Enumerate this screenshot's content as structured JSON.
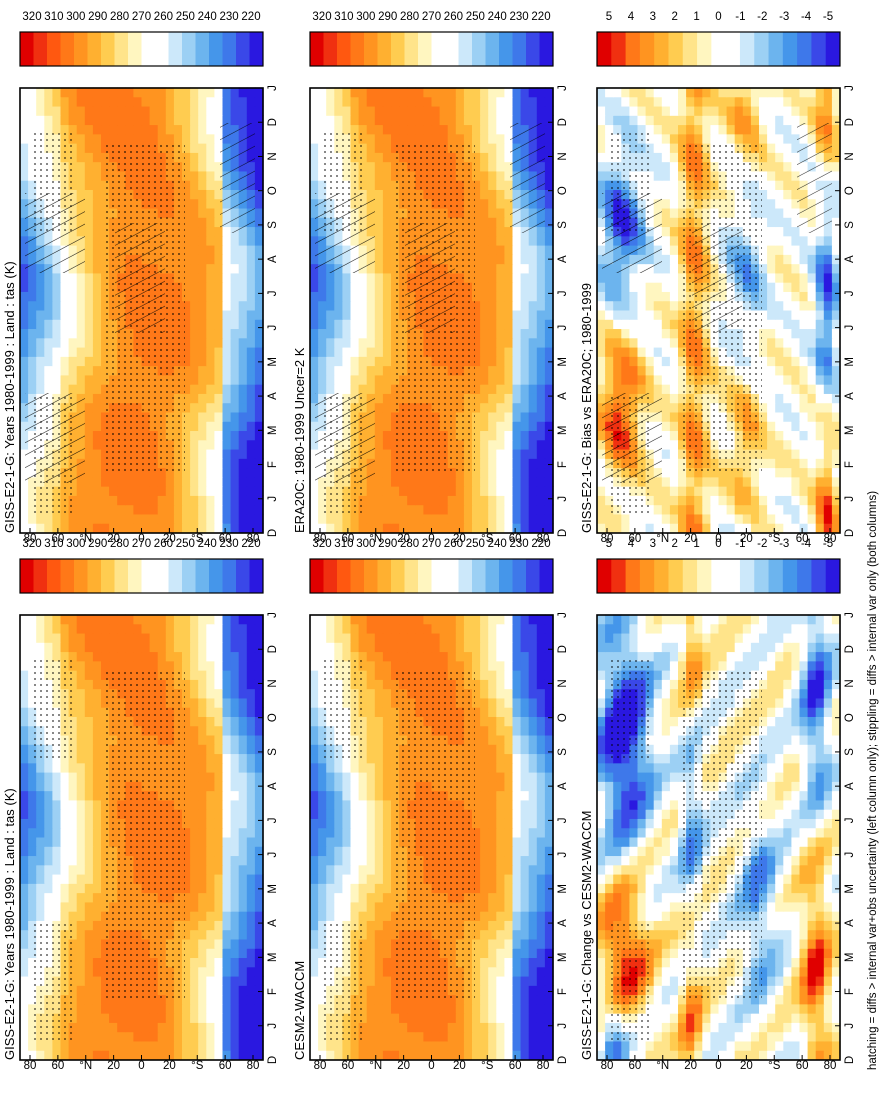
{
  "figure": {
    "footnote": "hatching = diffs > internal var+obs uncertainty (left column only); stippling = diffs > internal var only (both columns)"
  },
  "colors": {
    "abs_scale": [
      "#2a18e0",
      "#3a48e8",
      "#3e78ea",
      "#4596ea",
      "#6cb4ee",
      "#9cd0f4",
      "#cce8fa",
      "#ffffff",
      "#ffffff",
      "#fff6c0",
      "#ffe48a",
      "#ffcc50",
      "#ffb030",
      "#ff9420",
      "#ff7818",
      "#ff5810",
      "#f03010",
      "#e00000"
    ],
    "anom_scale": [
      "#2a18e0",
      "#3a48e8",
      "#3e78ea",
      "#4596ea",
      "#6cb4ee",
      "#9cd0f4",
      "#cce8fa",
      "#ffffff",
      "#ffffff",
      "#fff6c0",
      "#ffe48a",
      "#ffcc50",
      "#ffb030",
      "#ff9420",
      "#ff7818",
      "#f03010",
      "#e00000"
    ]
  },
  "chart_data": [
    {
      "id": "model_clim",
      "type": "heatmap",
      "title": "GISS-E2-1-G: Years 1980-1999 : Land : tas (K)",
      "x_ticks": [
        "D",
        "J",
        "F",
        "M",
        "A",
        "M",
        "J",
        "J",
        "A",
        "S",
        "O",
        "N",
        "D",
        "J"
      ],
      "y_ticks": [
        "80",
        "60",
        "°N",
        "20",
        "0",
        "20",
        "°S",
        "60",
        "80"
      ],
      "colorbar": [
        "320",
        "310",
        "300",
        "290",
        "280",
        "270",
        "260",
        "250",
        "240",
        "230",
        "220"
      ],
      "value_range": [
        215,
        325
      ],
      "kind": "abs",
      "hatching": true,
      "stippling": true
    },
    {
      "id": "model_clim_r",
      "type": "heatmap",
      "title": "GISS-E2-1-G: Years 1980-1999 : Land : tas (K)",
      "x_ticks": [
        "D",
        "J",
        "F",
        "M",
        "A",
        "M",
        "J",
        "J",
        "A",
        "S",
        "O",
        "N",
        "D",
        "J"
      ],
      "y_ticks": [
        "80",
        "60",
        "°N",
        "20",
        "0",
        "20",
        "°S",
        "60",
        "80"
      ],
      "colorbar": [
        "320",
        "310",
        "300",
        "290",
        "280",
        "270",
        "260",
        "250",
        "240",
        "230",
        "220"
      ],
      "value_range": [
        215,
        325
      ],
      "kind": "abs",
      "hatching": false,
      "stippling": true
    },
    {
      "id": "obs_clim",
      "type": "heatmap",
      "title": "ERA20C: 1980-1999 Uncer=2 K",
      "x_ticks": [
        "D",
        "J",
        "F",
        "M",
        "A",
        "M",
        "J",
        "J",
        "A",
        "S",
        "O",
        "N",
        "D",
        "J"
      ],
      "y_ticks": [
        "80",
        "60",
        "°N",
        "20",
        "0",
        "20",
        "°S",
        "60",
        "80"
      ],
      "colorbar": [
        "320",
        "310",
        "300",
        "290",
        "280",
        "270",
        "260",
        "250",
        "240",
        "230",
        "220"
      ],
      "value_range": [
        215,
        325
      ],
      "kind": "abs",
      "hatching": true,
      "stippling": true
    },
    {
      "id": "ref_clim",
      "type": "heatmap",
      "title": "CESM2-WACCM",
      "x_ticks": [
        "D",
        "J",
        "F",
        "M",
        "A",
        "M",
        "J",
        "J",
        "A",
        "S",
        "O",
        "N",
        "D",
        "J"
      ],
      "y_ticks": [
        "80",
        "60",
        "°N",
        "20",
        "0",
        "20",
        "°S",
        "60",
        "80"
      ],
      "colorbar": [
        "320",
        "310",
        "300",
        "290",
        "280",
        "270",
        "260",
        "250",
        "240",
        "230",
        "220"
      ],
      "value_range": [
        215,
        325
      ],
      "kind": "abs",
      "hatching": false,
      "stippling": true
    },
    {
      "id": "bias",
      "type": "heatmap",
      "title": "GISS-E2-1-G: Bias vs ERA20C; 1980-1999",
      "x_ticks": [
        "D",
        "J",
        "F",
        "M",
        "A",
        "M",
        "J",
        "J",
        "A",
        "S",
        "O",
        "N",
        "D",
        "J"
      ],
      "y_ticks": [
        "80",
        "60",
        "°N",
        "20",
        "0",
        "20",
        "°S",
        "60",
        "80"
      ],
      "colorbar": [
        "5",
        "4",
        "3",
        "2",
        "1",
        "0",
        "-1",
        "-2",
        "-3",
        "-4",
        "-5"
      ],
      "value_range": [
        -5.5,
        5.5
      ],
      "kind": "bias",
      "hatching": true,
      "stippling": true
    },
    {
      "id": "change",
      "type": "heatmap",
      "title": "GISS-E2-1-G: Change vs CESM2-WACCM",
      "x_ticks": [
        "D",
        "J",
        "F",
        "M",
        "A",
        "M",
        "J",
        "J",
        "A",
        "S",
        "O",
        "N",
        "D",
        "J"
      ],
      "y_ticks": [
        "80",
        "60",
        "°N",
        "20",
        "0",
        "20",
        "°S",
        "60",
        "80"
      ],
      "colorbar": [
        "5",
        "4",
        "3",
        "2",
        "1",
        "0",
        "-1",
        "-2",
        "-3",
        "-4",
        "-5"
      ],
      "value_range": [
        -5.5,
        5.5
      ],
      "kind": "change",
      "hatching": false,
      "stippling": true
    }
  ]
}
